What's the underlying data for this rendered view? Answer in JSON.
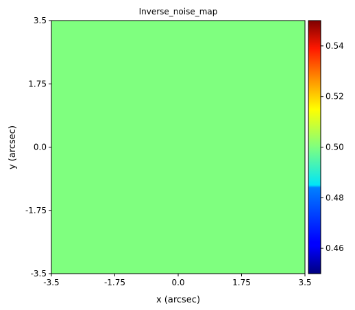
{
  "chart_data": {
    "type": "heatmap",
    "title": "Inverse_noise_map",
    "xlabel": "x (arcsec)",
    "ylabel": "y (arcsec)",
    "xlim": [
      -3.5,
      3.5
    ],
    "ylim": [
      -3.5,
      3.5
    ],
    "x_ticks": [
      {
        "value": -3.5,
        "label": "-3.5"
      },
      {
        "value": -1.75,
        "label": "-1.75"
      },
      {
        "value": 0.0,
        "label": "0.0"
      },
      {
        "value": 1.75,
        "label": "1.75"
      },
      {
        "value": 3.5,
        "label": "3.5"
      }
    ],
    "y_ticks": [
      {
        "value": -3.5,
        "label": "-3.5"
      },
      {
        "value": -1.75,
        "label": "-1.75"
      },
      {
        "value": 0.0,
        "label": "0.0"
      },
      {
        "value": 1.75,
        "label": "1.75"
      },
      {
        "value": 3.5,
        "label": "3.5"
      }
    ],
    "values": [
      [
        0.5
      ]
    ],
    "field_color": "#7fff7f",
    "colormap": "jet",
    "colorbar": {
      "range": [
        0.45,
        0.55
      ],
      "ticks": [
        {
          "value": 0.46,
          "label": "0.46"
        },
        {
          "value": 0.48,
          "label": "0.48"
        },
        {
          "value": 0.5,
          "label": "0.50"
        },
        {
          "value": 0.52,
          "label": "0.52"
        },
        {
          "value": 0.54,
          "label": "0.54"
        }
      ]
    },
    "grid": false
  }
}
